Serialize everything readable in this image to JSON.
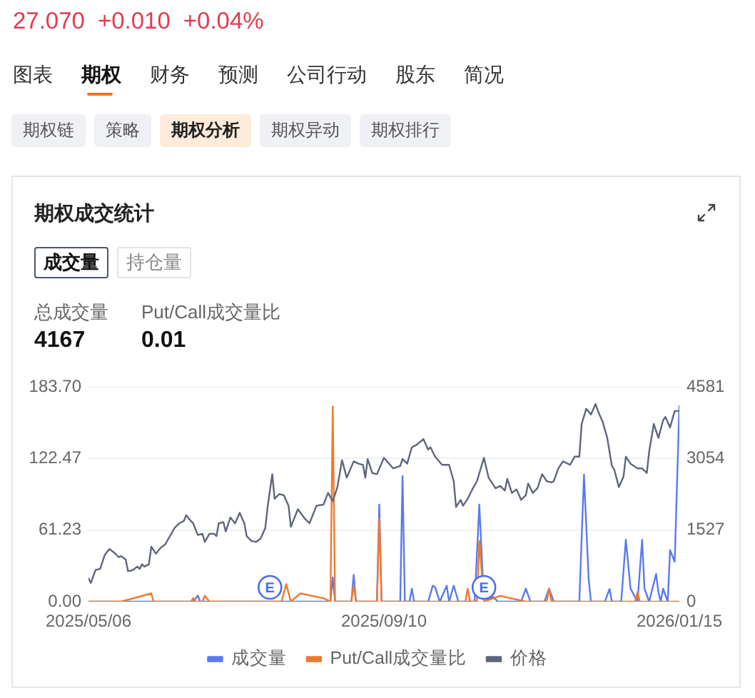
{
  "chart_data": {
    "type": "line",
    "title": "期权成交统计",
    "annotations": [
      "27.070",
      "+0.010",
      "+0.04%",
      "图表",
      "期权",
      "财务",
      "预测",
      "公司行动",
      "股东",
      "简况",
      "期权链",
      "策略",
      "期权分析",
      "期权异动",
      "期权排行",
      "成交量",
      "持仓量",
      "总成交量",
      "4167",
      "Put/Call成交量比",
      "0.01",
      {
        "text": "E",
        "x": "2025-07-23",
        "y": 0
      },
      {
        "text": "E",
        "x": "2025-10-23",
        "y": 0
      }
    ],
    "xlim": [
      "2025-05-06",
      "2026-01-15"
    ],
    "xticks": [
      {
        "value": "2025-05-06",
        "label": "2025/05/06"
      },
      {
        "value": "2025-09-10",
        "label": "2025/09/10"
      },
      {
        "value": "2026-01-15",
        "label": "2026/01/15"
      }
    ],
    "ylim": [
      0,
      183.7
    ],
    "yticks": [
      {
        "value": 0,
        "label": "0.00"
      },
      61.23,
      122.47,
      {
        "value": 183.7,
        "label": "183.70"
      }
    ],
    "y2lim": [
      0,
      4581
    ],
    "y2ticks": [
      0,
      1527,
      3054,
      4581
    ],
    "grid": "y",
    "legend": "bottom",
    "series": [
      {
        "name": "成交量",
        "color": "#5a7af0",
        "axis": "y2",
        "x": [
          "2025-05-06",
          "2025-06-20",
          "2025-06-22",
          "2025-06-23",
          "2025-08-18",
          "2025-08-19",
          "2025-08-20",
          "2025-08-27",
          "2025-08-28",
          "2025-08-29",
          "2025-09-07",
          "2025-09-08",
          "2025-09-09",
          "2025-09-17",
          "2025-09-18",
          "2025-09-19",
          "2025-09-21",
          "2025-09-22",
          "2025-09-23",
          "2025-09-29",
          "2025-10-01",
          "2025-10-02",
          "2025-10-04",
          "2025-10-07",
          "2025-10-08",
          "2025-10-10",
          "2025-10-12",
          "2025-10-19",
          "2025-10-21",
          "2025-10-23",
          "2025-10-27",
          "2025-10-29",
          "2025-11-08",
          "2025-11-10",
          "2025-11-12",
          "2025-11-18",
          "2025-11-20",
          "2025-11-22",
          "2025-12-03",
          "2025-12-05",
          "2025-12-07",
          "2025-12-08",
          "2025-12-14",
          "2025-12-16",
          "2025-12-17",
          "2025-12-21",
          "2025-12-23",
          "2025-12-25",
          "2025-12-28",
          "2025-12-30",
          "2025-12-31",
          "2026-01-02",
          "2026-01-05",
          "2026-01-06",
          "2026-01-07",
          "2026-01-08",
          "2026-01-10",
          "2026-01-11",
          "2026-01-13",
          "2026-01-15"
        ],
        "values": [
          0,
          0,
          130,
          0,
          0,
          520,
          0,
          0,
          570,
          0,
          0,
          2070,
          0,
          0,
          2680,
          0,
          0,
          280,
          0,
          0,
          340,
          310,
          0,
          340,
          0,
          340,
          0,
          0,
          2070,
          0,
          100,
          0,
          0,
          280,
          0,
          0,
          280,
          0,
          0,
          2710,
          490,
          0,
          0,
          270,
          0,
          0,
          1320,
          280,
          0,
          1320,
          280,
          0,
          590,
          200,
          0,
          280,
          0,
          1100,
          850,
          4170
        ]
      },
      {
        "name": "Put/Call成交量比",
        "color": "#ef7a2e",
        "x": [
          "2025-05-06",
          "2025-05-20",
          "2025-06-02",
          "2025-06-03",
          "2025-06-19",
          "2025-06-20",
          "2025-06-21",
          "2025-06-24",
          "2025-06-25",
          "2025-06-27",
          "2025-07-28",
          "2025-07-30",
          "2025-08-01",
          "2025-08-05",
          "2025-08-15",
          "2025-08-18",
          "2025-08-19",
          "2025-08-20",
          "2025-08-27",
          "2025-08-28",
          "2025-08-29",
          "2025-09-07",
          "2025-09-08",
          "2025-09-09",
          "2025-10-15",
          "2025-10-16",
          "2025-10-17",
          "2025-10-20",
          "2025-10-21",
          "2025-10-23",
          "2025-10-30",
          "2025-11-10",
          "2025-11-19",
          "2025-11-20",
          "2025-11-21",
          "2025-12-27",
          "2025-12-28",
          "2025-12-29",
          "2026-01-15"
        ],
        "values": [
          0,
          0,
          7,
          0,
          0,
          3,
          0,
          0,
          5,
          0,
          0,
          15,
          0,
          7,
          3,
          0,
          167,
          0,
          0,
          14,
          0,
          0,
          71,
          0,
          0,
          11,
          0,
          0,
          52,
          0,
          5,
          0,
          0,
          11,
          0,
          0,
          8,
          0,
          0
        ]
      },
      {
        "name": "价格",
        "color": "#5f6779",
        "x": [
          "2025-05-06",
          "2025-05-07",
          "2025-05-09",
          "2025-05-11",
          "2025-05-13",
          "2025-05-15",
          "2025-05-17",
          "2025-05-19",
          "2025-05-20",
          "2025-05-22",
          "2025-05-23",
          "2025-05-25",
          "2025-05-27",
          "2025-05-28",
          "2025-05-29",
          "2025-05-30",
          "2025-06-01",
          "2025-06-02",
          "2025-06-04",
          "2025-06-06",
          "2025-06-08",
          "2025-06-10",
          "2025-06-12",
          "2025-06-14",
          "2025-06-16",
          "2025-06-17",
          "2025-06-19",
          "2025-06-20",
          "2025-06-22",
          "2025-06-24",
          "2025-06-25",
          "2025-06-27",
          "2025-06-29",
          "2025-06-30",
          "2025-07-01",
          "2025-07-03",
          "2025-07-04",
          "2025-07-06",
          "2025-07-08",
          "2025-07-10",
          "2025-07-12",
          "2025-07-13",
          "2025-07-15",
          "2025-07-17",
          "2025-07-19",
          "2025-07-21",
          "2025-07-22",
          "2025-07-24",
          "2025-07-25",
          "2025-07-27",
          "2025-07-29",
          "2025-07-31",
          "2025-08-01",
          "2025-08-04",
          "2025-08-07",
          "2025-08-09",
          "2025-08-12",
          "2025-08-15",
          "2025-08-17",
          "2025-08-19",
          "2025-08-21",
          "2025-08-23",
          "2025-08-25",
          "2025-08-28",
          "2025-08-30",
          "2025-09-01",
          "2025-09-02",
          "2025-09-03",
          "2025-09-05",
          "2025-09-07",
          "2025-09-10",
          "2025-09-14",
          "2025-09-17",
          "2025-09-18",
          "2025-09-20",
          "2025-09-22",
          "2025-09-24",
          "2025-09-27",
          "2025-09-29",
          "2025-09-30",
          "2025-10-02",
          "2025-10-05",
          "2025-10-08",
          "2025-10-10",
          "2025-10-11",
          "2025-10-13",
          "2025-10-14",
          "2025-10-16",
          "2025-10-18",
          "2025-10-20",
          "2025-10-23",
          "2025-10-25",
          "2025-10-28",
          "2025-10-30",
          "2025-11-01",
          "2025-11-02",
          "2025-11-04",
          "2025-11-06",
          "2025-11-08",
          "2025-11-10",
          "2025-11-11",
          "2025-11-13",
          "2025-11-15",
          "2025-11-17",
          "2025-11-19",
          "2025-11-21",
          "2025-11-22",
          "2025-11-24",
          "2025-11-26",
          "2025-11-29",
          "2025-12-01",
          "2025-12-03",
          "2025-12-04",
          "2025-12-06",
          "2025-12-08",
          "2025-12-10",
          "2025-12-11",
          "2025-12-13",
          "2025-12-15",
          "2025-12-17",
          "2025-12-18",
          "2025-12-20",
          "2025-12-22",
          "2025-12-23",
          "2025-12-25",
          "2025-12-28",
          "2025-12-30",
          "2026-01-01",
          "2026-01-02",
          "2026-01-04",
          "2026-01-06",
          "2026-01-08",
          "2026-01-09",
          "2026-01-11",
          "2026-01-13",
          "2026-01-15"
        ],
        "values": [
          20,
          16,
          27,
          28,
          40,
          45,
          42,
          38,
          39,
          36,
          26,
          27,
          30,
          28,
          32,
          30,
          32,
          47,
          41,
          46,
          49,
          56,
          63,
          67,
          69,
          74,
          69,
          67,
          57,
          58,
          51,
          58,
          58,
          56,
          67,
          68,
          60,
          72,
          67,
          76,
          67,
          56,
          52,
          51,
          54,
          63,
          81,
          109,
          88,
          92,
          91,
          82,
          64,
          79,
          71,
          67,
          82,
          83,
          93,
          86,
          98,
          121,
          106,
          120,
          118,
          117,
          106,
          122,
          110,
          109,
          123,
          114,
          116,
          122,
          118,
          132,
          134,
          139,
          130,
          132,
          124,
          117,
          117,
          103,
          81,
          87,
          82,
          88,
          96,
          103,
          123,
          106,
          97,
          99,
          95,
          105,
          93,
          96,
          87,
          91,
          101,
          93,
          97,
          109,
          103,
          102,
          103,
          114,
          120,
          117,
          124,
          124,
          152,
          165,
          160,
          169,
          163,
          154,
          140,
          116,
          113,
          98,
          107,
          124,
          118,
          114,
          114,
          110,
          128,
          152,
          140,
          155,
          158,
          149,
          163,
          163
        ]
      }
    ]
  }
}
